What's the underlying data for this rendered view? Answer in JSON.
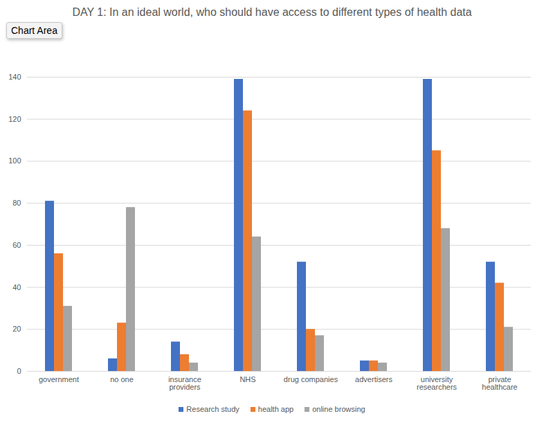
{
  "chart_data": {
    "type": "bar",
    "title": "DAY 1: In an ideal world, who should have access to different types of health data",
    "annotations": [
      "Chart Area"
    ],
    "categories": [
      "government",
      "no one",
      "insurance providers",
      "NHS",
      "drug companies",
      "advertisers",
      "university researchers",
      "private healthcare"
    ],
    "series": [
      {
        "name": "Research study",
        "color": "#4472c4",
        "values": [
          81,
          6,
          14,
          139,
          52,
          5,
          139,
          52
        ]
      },
      {
        "name": "health app",
        "color": "#ed7d31",
        "values": [
          56,
          23,
          8,
          124,
          20,
          5,
          105,
          42
        ]
      },
      {
        "name": "online browsing",
        "color": "#a5a5a5",
        "values": [
          31,
          78,
          4,
          64,
          17,
          4,
          68,
          21
        ]
      }
    ],
    "ylim": [
      0,
      140
    ],
    "yticks": [
      0,
      20,
      40,
      60,
      80,
      100,
      120,
      140
    ],
    "grid": true,
    "legend": "bottom"
  }
}
